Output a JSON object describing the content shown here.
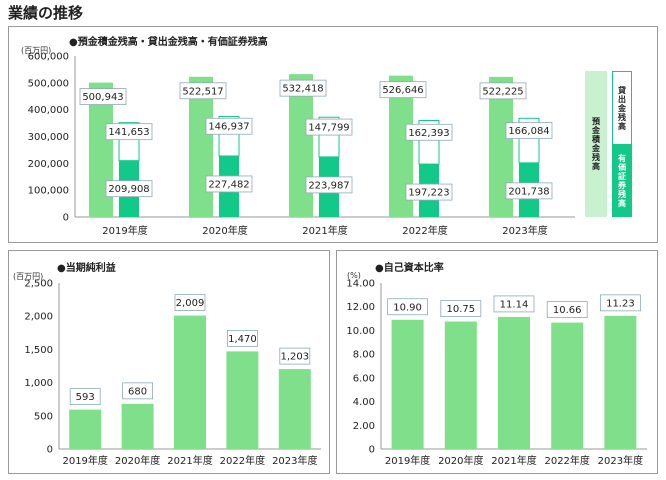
{
  "page_title": "業績の推移",
  "colors": {
    "light_green": "#7fdf8a",
    "teal": "#12c98a",
    "legend_light": "#c9f0cf",
    "axis": "#999999",
    "grid": "#d9d9d9"
  },
  "chart_data": [
    {
      "type": "bar",
      "title": "●預金積金残高・貸出金残高・有価証券残高",
      "unit": "(百万円)",
      "categories": [
        "2019年度",
        "2020年度",
        "2021年度",
        "2022年度",
        "2023年度"
      ],
      "ylim": [
        0,
        600000
      ],
      "yticks": [
        "0",
        "100,000",
        "200,000",
        "300,000",
        "400,000",
        "500,000",
        "600,000"
      ],
      "series": [
        {
          "name": "預金積金残高",
          "values": [
            500943,
            522517,
            532418,
            526646,
            522225
          ],
          "labels": [
            "500,943",
            "522,517",
            "532,418",
            "526,646",
            "522,225"
          ]
        },
        {
          "name": "貸出金残高",
          "values": [
            141653,
            146937,
            147799,
            162393,
            166084
          ],
          "labels": [
            "141,653",
            "146,937",
            "147,799",
            "162,393",
            "166,084"
          ]
        },
        {
          "name": "有価証券残高",
          "values": [
            209908,
            227482,
            223987,
            197223,
            201738
          ],
          "labels": [
            "209,908",
            "227,482",
            "223,987",
            "197,223",
            "201,738"
          ]
        }
      ],
      "legend": [
        "預金積金残高",
        "貸出金残高",
        "有価証券残高"
      ]
    },
    {
      "type": "bar",
      "title": "●当期純利益",
      "unit": "(百万円)",
      "categories": [
        "2019年度",
        "2020年度",
        "2021年度",
        "2022年度",
        "2023年度"
      ],
      "ylim": [
        0,
        2500
      ],
      "yticks": [
        "0",
        "500",
        "1,000",
        "1,500",
        "2,000",
        "2,500"
      ],
      "values": [
        593,
        680,
        2009,
        1470,
        1203
      ],
      "labels": [
        "593",
        "680",
        "2,009",
        "1,470",
        "1,203"
      ]
    },
    {
      "type": "bar",
      "title": "●自己資本比率",
      "unit": "(%)",
      "categories": [
        "2019年度",
        "2020年度",
        "2021年度",
        "2022年度",
        "2023年度"
      ],
      "ylim": [
        0,
        14
      ],
      "yticks": [
        "0",
        "2.00",
        "4.00",
        "6.00",
        "8.00",
        "10.00",
        "12.00",
        "14.00"
      ],
      "values": [
        10.9,
        10.75,
        11.14,
        10.66,
        11.23
      ],
      "labels": [
        "10.90",
        "10.75",
        "11.14",
        "10.66",
        "11.23"
      ]
    }
  ]
}
